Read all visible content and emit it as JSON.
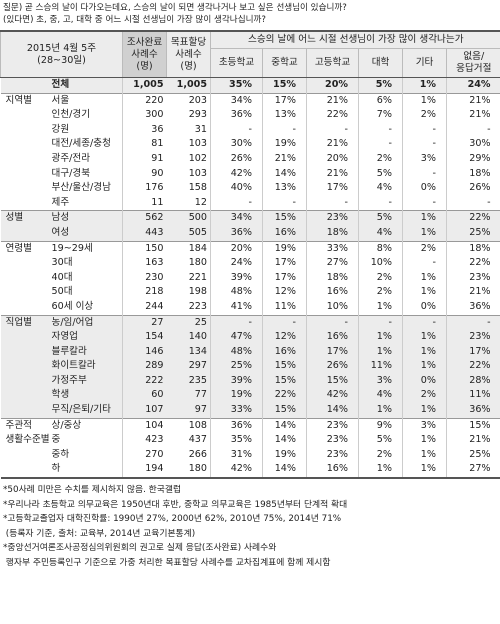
{
  "question": [
    "질문) 곧 스승의 날이 다가오는데요, 스승의 날이 되면 생각나거나 보고 싶은 선생님이 있습니까?",
    "(있다면) 초, 중, 고, 대학 중 어느 시절 선생님이 가장 많이 생각나십니까?"
  ],
  "header": {
    "period": [
      "2015년 4월 5주",
      "(28~30일)"
    ],
    "completed": [
      "조사완료",
      "사례수",
      "(명)"
    ],
    "target": [
      "목표할당",
      "사례수",
      "(명)"
    ],
    "group_title": "스승의 날에 어느 시절 선생님이 가장 많이 생각나는가",
    "columns": [
      [
        "초등학교"
      ],
      [
        "중학교"
      ],
      [
        "고등학교"
      ],
      [
        "대학"
      ],
      [
        "기타"
      ],
      [
        "없음/",
        "응답거절"
      ]
    ]
  },
  "total": [
    "전체",
    "1,005",
    "1,005",
    "35%",
    "15%",
    "20%",
    "5%",
    "1%",
    "24%"
  ],
  "groups": [
    {
      "name": [
        "지역별"
      ],
      "rows": [
        [
          "서울",
          "220",
          "203",
          "34%",
          "17%",
          "21%",
          "6%",
          "1%",
          "21%"
        ],
        [
          "인천/경기",
          "300",
          "293",
          "36%",
          "13%",
          "22%",
          "7%",
          "2%",
          "21%"
        ],
        [
          "강원",
          "36",
          "31",
          "-",
          "-",
          "-",
          "-",
          "-",
          "-"
        ],
        [
          "대전/세종/충청",
          "81",
          "103",
          "30%",
          "19%",
          "21%",
          "-",
          "-",
          "30%"
        ],
        [
          "광주/전라",
          "91",
          "102",
          "26%",
          "21%",
          "20%",
          "2%",
          "3%",
          "29%"
        ],
        [
          "대구/경북",
          "90",
          "103",
          "42%",
          "14%",
          "21%",
          "5%",
          "-",
          "18%"
        ],
        [
          "부산/울산/경남",
          "176",
          "158",
          "40%",
          "13%",
          "17%",
          "4%",
          "0%",
          "26%"
        ],
        [
          "제주",
          "11",
          "12",
          "-",
          "-",
          "-",
          "-",
          "-",
          "-"
        ]
      ]
    },
    {
      "name": [
        "성별"
      ],
      "rows": [
        [
          "남성",
          "562",
          "500",
          "34%",
          "15%",
          "23%",
          "5%",
          "1%",
          "22%"
        ],
        [
          "여성",
          "443",
          "505",
          "36%",
          "16%",
          "18%",
          "4%",
          "1%",
          "25%"
        ]
      ]
    },
    {
      "name": [
        "연령별"
      ],
      "rows": [
        [
          "19~29세",
          "150",
          "184",
          "20%",
          "19%",
          "33%",
          "8%",
          "2%",
          "18%"
        ],
        [
          "30대",
          "163",
          "180",
          "24%",
          "17%",
          "27%",
          "10%",
          "-",
          "22%"
        ],
        [
          "40대",
          "230",
          "221",
          "39%",
          "17%",
          "18%",
          "2%",
          "1%",
          "23%"
        ],
        [
          "50대",
          "218",
          "198",
          "48%",
          "12%",
          "16%",
          "2%",
          "1%",
          "21%"
        ],
        [
          "60세 이상",
          "244",
          "223",
          "41%",
          "11%",
          "10%",
          "1%",
          "0%",
          "36%"
        ]
      ]
    },
    {
      "name": [
        "직업별"
      ],
      "rows": [
        [
          "농/임/어업",
          "27",
          "25",
          "-",
          "-",
          "-",
          "-",
          "-",
          "-"
        ],
        [
          "자영업",
          "154",
          "140",
          "47%",
          "12%",
          "16%",
          "1%",
          "1%",
          "23%"
        ],
        [
          "블루칼라",
          "146",
          "134",
          "48%",
          "16%",
          "17%",
          "1%",
          "1%",
          "17%"
        ],
        [
          "화이트칼라",
          "289",
          "297",
          "25%",
          "15%",
          "26%",
          "11%",
          "1%",
          "22%"
        ],
        [
          "가정주부",
          "222",
          "235",
          "39%",
          "15%",
          "15%",
          "3%",
          "0%",
          "28%"
        ],
        [
          "학생",
          "60",
          "77",
          "19%",
          "22%",
          "42%",
          "4%",
          "2%",
          "11%"
        ],
        [
          "무직/은퇴/기타",
          "107",
          "97",
          "33%",
          "15%",
          "14%",
          "1%",
          "1%",
          "36%"
        ]
      ]
    },
    {
      "name": [
        "주관적",
        "생활수준별"
      ],
      "rows": [
        [
          "상/중상",
          "104",
          "108",
          "36%",
          "14%",
          "23%",
          "9%",
          "3%",
          "15%"
        ],
        [
          "중",
          "423",
          "437",
          "35%",
          "14%",
          "23%",
          "5%",
          "1%",
          "21%"
        ],
        [
          "중하",
          "270",
          "266",
          "31%",
          "19%",
          "23%",
          "2%",
          "1%",
          "25%"
        ],
        [
          "하",
          "194",
          "180",
          "42%",
          "14%",
          "16%",
          "1%",
          "1%",
          "27%"
        ]
      ]
    }
  ],
  "notes": [
    "*50사례 미만은 수치를 제시하지 않음. 한국갤럽",
    "*우리나라 초등학교 의무교육은 1950년대 후반, 중학교 의무교육은 1985년부터 단계적 확대",
    "*고등학교졸업자 대학진학률: 1990년 27%, 2000년 62%, 2010년 75%, 2014년 71%",
    " (등록자 기준, 출처: 교육부, 2014년 교육기본통계)",
    "*중앙선거여론조사공정심의위원회의 권고로 실제 응답(조사완료) 사례수와",
    " 행자부 주민등록인구 기준으로 가중 처리한 목표할당 사례수를 교차집계표에 함께 제시함"
  ]
}
